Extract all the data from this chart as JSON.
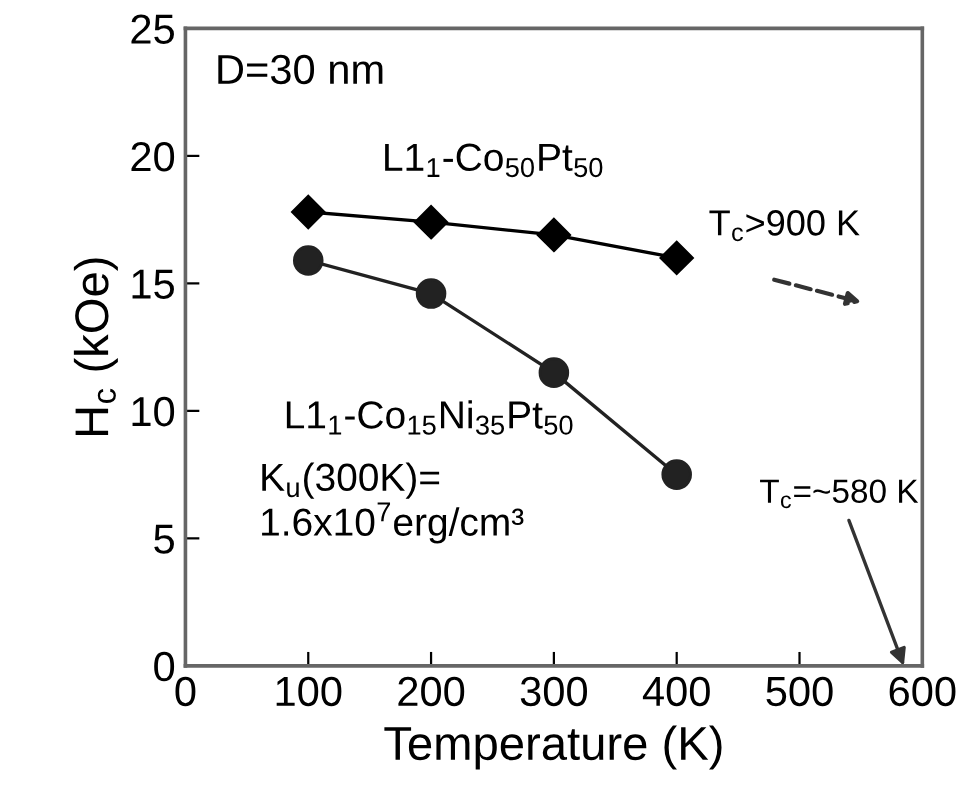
{
  "chart_data": {
    "type": "line",
    "xlabel": "Temperature (K)",
    "ylabel": "H$_{c}$ (kOe)",
    "x": [
      100,
      200,
      300,
      400
    ],
    "series": [
      {
        "name": "L1$_{1}$-Co$_{50}$Pt$_{50}$",
        "color": "#000000",
        "marker": "diamond",
        "values": [
          17.8,
          17.4,
          16.9,
          16.0
        ]
      },
      {
        "name": "L1$_{1}$-Co$_{15}$Ni$_{35}$Pt$_{50}$",
        "color": "#222222",
        "marker": "circle",
        "values": [
          15.9,
          14.6,
          11.5,
          7.5
        ]
      }
    ],
    "xlim": [
      0,
      600
    ],
    "xticks": [
      0,
      100,
      200,
      300,
      400,
      500,
      600
    ],
    "ylim": [
      0,
      25
    ],
    "yticks": [
      0,
      5,
      10,
      15,
      20,
      25
    ],
    "grid": false,
    "line_style": "solid",
    "annotations": [
      "D=30 nm",
      "K$_{u}$(300K)=\n1.6x10$^{7}$erg/cm³",
      "T$_{c}$>900 K",
      "T$_{c}$=~580 K"
    ]
  }
}
